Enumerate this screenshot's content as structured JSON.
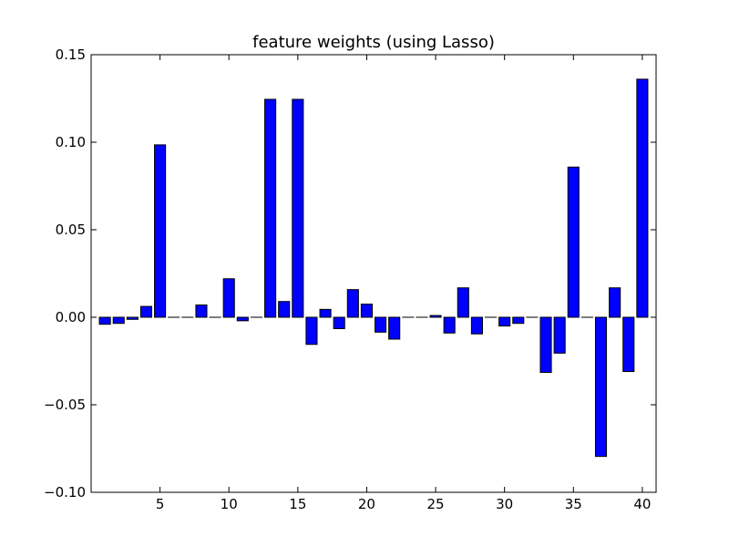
{
  "chart_data": {
    "type": "bar",
    "title": "feature weights (using Lasso)",
    "xlabel": "",
    "ylabel": "",
    "bar_color": "#0000ff",
    "edge_color": "#000000",
    "xlim": [
      0,
      41
    ],
    "ylim": [
      -0.1,
      0.15
    ],
    "x": [
      1,
      2,
      3,
      4,
      5,
      6,
      7,
      8,
      9,
      10,
      11,
      12,
      13,
      14,
      15,
      16,
      17,
      18,
      19,
      20,
      21,
      22,
      23,
      24,
      25,
      26,
      27,
      28,
      29,
      30,
      31,
      32,
      33,
      34,
      35,
      36,
      37,
      38,
      39,
      40
    ],
    "values": [
      -0.004,
      -0.0035,
      -0.0012,
      0.0062,
      0.0985,
      0.0,
      0.0,
      0.007,
      0.0,
      0.022,
      -0.002,
      0.0,
      0.1245,
      0.009,
      0.1245,
      -0.0155,
      0.0045,
      -0.0065,
      0.0158,
      0.0075,
      -0.0085,
      -0.0125,
      0.0,
      0.0,
      0.001,
      -0.009,
      0.0168,
      -0.0095,
      0.0,
      -0.005,
      -0.0035,
      0.0,
      -0.0315,
      -0.0205,
      0.0858,
      0.0,
      -0.0795,
      0.0168,
      -0.031,
      0.136
    ],
    "x_ticks": [
      5,
      10,
      15,
      20,
      25,
      30,
      35,
      40
    ],
    "x_tick_labels": [
      "5",
      "10",
      "15",
      "20",
      "25",
      "30",
      "35",
      "40"
    ],
    "y_ticks": [
      -0.1,
      -0.05,
      0.0,
      0.05,
      0.1,
      0.15
    ],
    "y_tick_labels": [
      "−0.10",
      "−0.05",
      "0.00",
      "0.05",
      "0.10",
      "0.15"
    ]
  }
}
